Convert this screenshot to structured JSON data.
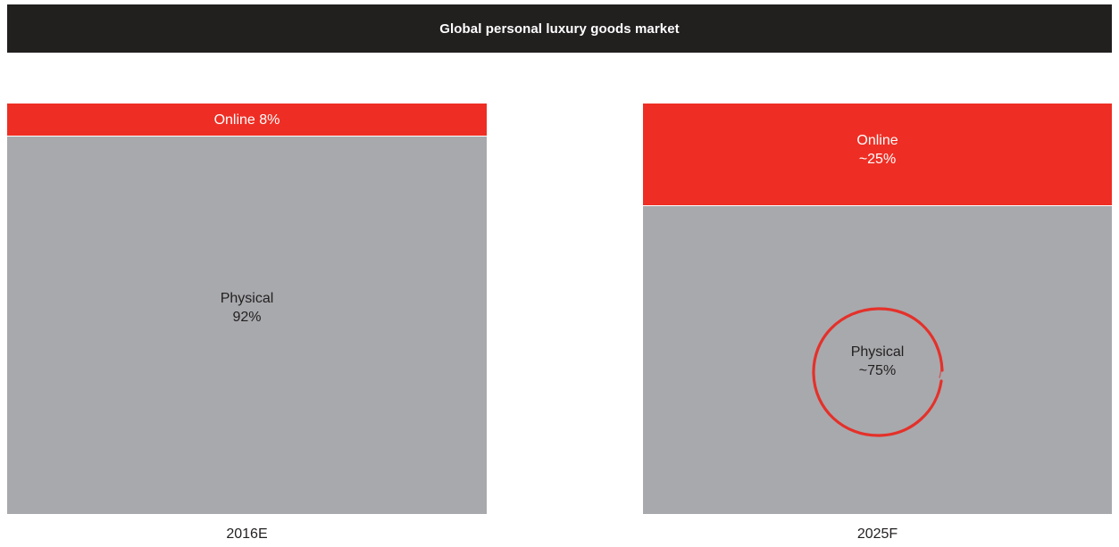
{
  "title": "Global personal luxury goods market",
  "chart_data": {
    "type": "bar",
    "stacked": true,
    "normalized_to_100": true,
    "title": "Global personal luxury goods market",
    "categories": [
      "2016E",
      "2025F"
    ],
    "series": [
      {
        "name": "Online",
        "values": [
          8,
          25
        ],
        "labels": [
          "8%",
          "~25%"
        ],
        "color": "#ee2e24"
      },
      {
        "name": "Physical",
        "values": [
          92,
          75
        ],
        "labels": [
          "92%",
          "~75%"
        ],
        "color": "#a8a9ad"
      }
    ],
    "ylim": [
      0,
      100
    ],
    "highlight": {
      "category": "2025F",
      "series": "Physical",
      "mark": "red hand-drawn circle"
    }
  },
  "bars": [
    {
      "category": "2016E",
      "online_name": "Online",
      "online_label": "8%",
      "online_text": "Online 8%",
      "physical_name": "Physical",
      "physical_label": "92%"
    },
    {
      "category": "2025F",
      "online_name": "Online",
      "online_label": "~25%",
      "physical_name": "Physical",
      "physical_label": "~75%"
    }
  ],
  "colors": {
    "title_bg": "#221f1f",
    "online": "#ee2e24",
    "physical": "#a8a9ad",
    "circle": "#e4312a"
  }
}
